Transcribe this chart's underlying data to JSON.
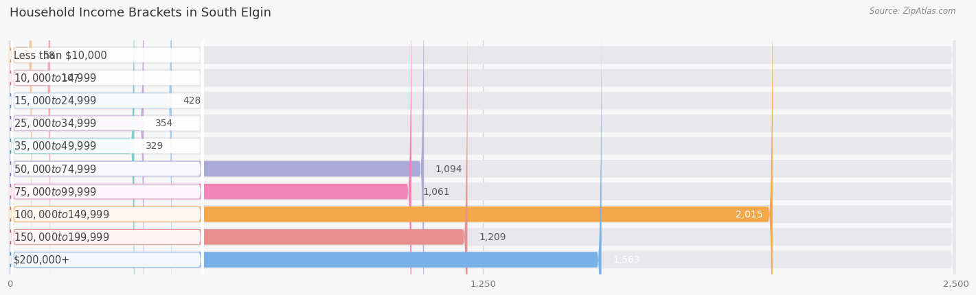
{
  "title": "Household Income Brackets in South Elgin",
  "source": "Source: ZipAtlas.com",
  "categories": [
    "Less than $10,000",
    "$10,000 to $14,999",
    "$15,000 to $24,999",
    "$25,000 to $34,999",
    "$35,000 to $49,999",
    "$50,000 to $74,999",
    "$75,000 to $99,999",
    "$100,000 to $149,999",
    "$150,000 to $199,999",
    "$200,000+"
  ],
  "values": [
    58,
    107,
    428,
    354,
    329,
    1094,
    1061,
    2015,
    1209,
    1563
  ],
  "bar_colors": [
    "#f5c8a0",
    "#f5a8b5",
    "#a8cce8",
    "#c8aad8",
    "#7ecec8",
    "#aaaad8",
    "#f085b8",
    "#f5a84a",
    "#e89090",
    "#78b0e8"
  ],
  "dot_colors": [
    "#e8a060",
    "#e87585",
    "#6090cc",
    "#9060c0",
    "#40a898",
    "#7878c8",
    "#e050a0",
    "#e88030",
    "#d06060",
    "#4888d0"
  ],
  "xlim": [
    0,
    2500
  ],
  "xticks": [
    0,
    1250,
    2500
  ],
  "background_color": "#f7f7f7",
  "bar_bg_color": "#e8e8ec",
  "bar_row_bg": "#efefef",
  "title_fontsize": 13,
  "label_fontsize": 10.5,
  "value_fontsize": 10
}
